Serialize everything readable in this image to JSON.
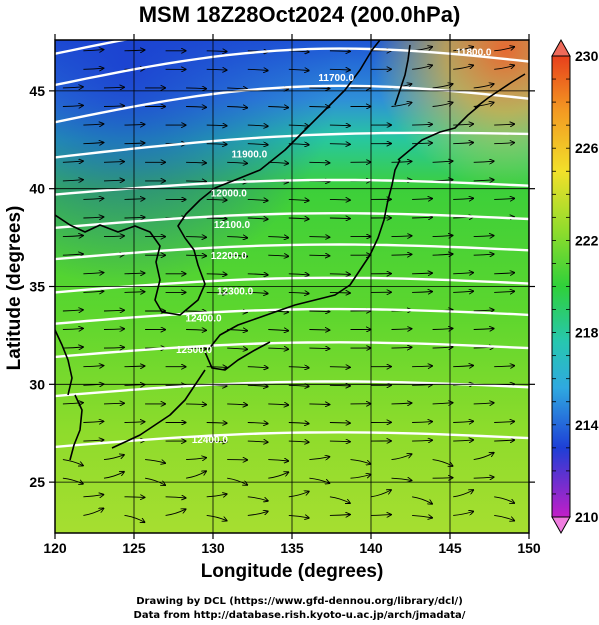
{
  "title": "MSM 18Z28Oct2024 (200.0hPa)",
  "credits": {
    "line1": "Drawing by DCL (https://www.gfd-dennou.org/library/dcl/)",
    "line2": "Data from http://database.rish.kyoto-u.ac.jp/arch/jmadata/"
  },
  "chart_data": {
    "type": "heatmap",
    "xlabel": "Longitude (degrees)",
    "ylabel": "Latitude  (degrees)",
    "xlim": [
      120,
      150
    ],
    "ylim": [
      22.4,
      47.6
    ],
    "x_ticks": [
      120,
      125,
      130,
      135,
      140,
      145,
      150
    ],
    "y_ticks": [
      25,
      30,
      35,
      40,
      45
    ],
    "grid": true,
    "colorbar": {
      "min": 210,
      "max": 230,
      "tick_labels": [
        "230",
        "226",
        "222",
        "218",
        "214",
        "210"
      ],
      "tick_values": [
        230,
        226,
        222,
        218,
        214,
        210
      ],
      "extends": "both"
    },
    "contour_labels": [
      {
        "text": "11700.0",
        "lon": 137.8,
        "lat": 45.5
      },
      {
        "text": "11800.0",
        "lon": 146.5,
        "lat": 46.8
      },
      {
        "text": "11900.0",
        "lon": 132.3,
        "lat": 41.6
      },
      {
        "text": "12000.0",
        "lon": 131.0,
        "lat": 39.6
      },
      {
        "text": "12100.0",
        "lon": 131.2,
        "lat": 38.0
      },
      {
        "text": "12200.0",
        "lon": 131.0,
        "lat": 36.4
      },
      {
        "text": "12300.0",
        "lon": 131.4,
        "lat": 34.6
      },
      {
        "text": "12400.0",
        "lon": 129.4,
        "lat": 33.2
      },
      {
        "text": "12500.0",
        "lon": 128.8,
        "lat": 31.6
      },
      {
        "text": "12400.0",
        "lon": 129.8,
        "lat": 27.0
      }
    ]
  }
}
